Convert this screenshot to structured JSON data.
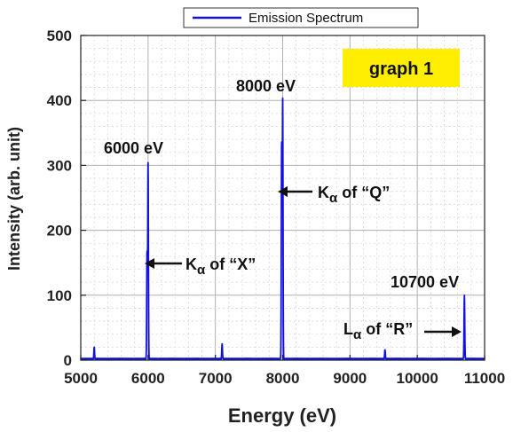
{
  "chart_data": {
    "type": "line",
    "xlabel": "Energy (eV)",
    "ylabel": "Intensity (arb. unit)",
    "xlim": [
      5000,
      11000
    ],
    "ylim": [
      0,
      500
    ],
    "x_ticks": [
      5000,
      6000,
      7000,
      8000,
      9000,
      10000,
      11000
    ],
    "y_ticks": [
      0,
      100,
      200,
      300,
      400,
      500
    ],
    "grid": "on",
    "legend": {
      "placement": "top-center",
      "entries": [
        "Emission Spectrum"
      ]
    },
    "tag": "graph 1",
    "colors": {
      "series": "#1010e0",
      "tag_background": "#ffee00"
    },
    "series": [
      {
        "name": "Emission Spectrum",
        "baseline": 2,
        "peaks": [
          {
            "x": 5200,
            "y": 20
          },
          {
            "x": 5985,
            "y": 165
          },
          {
            "x": 6000,
            "y": 302
          },
          {
            "x": 7100,
            "y": 25
          },
          {
            "x": 7985,
            "y": 335
          },
          {
            "x": 8000,
            "y": 400
          },
          {
            "x": 9520,
            "y": 16
          },
          {
            "x": 10700,
            "y": 100
          }
        ]
      }
    ],
    "annotations": {
      "peak1": "6000 eV",
      "peak2": "8000 eV",
      "peak3": "10700 eV",
      "label_x": {
        "k": "K",
        "sub": "α",
        "rest": " of “X”"
      },
      "label_q": {
        "k": "K",
        "sub": "α",
        "rest": " of “Q”"
      },
      "label_r": {
        "k": "L",
        "sub": "α",
        "rest": " of “R”"
      }
    }
  }
}
